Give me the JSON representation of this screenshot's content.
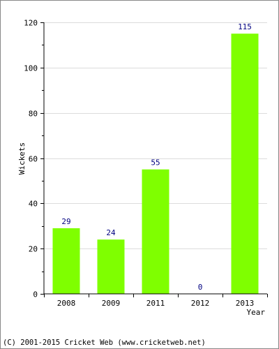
{
  "chart_data": {
    "type": "bar",
    "categories": [
      "2008",
      "2009",
      "2011",
      "2012",
      "2013"
    ],
    "values": [
      29,
      24,
      55,
      0,
      115
    ],
    "data_labels": [
      "29",
      "24",
      "55",
      "0",
      "115"
    ],
    "ylabel": "Wickets",
    "xlabel": "Year",
    "ylim": [
      0,
      120
    ],
    "yticks": [
      "0",
      "20",
      "40",
      "60",
      "80",
      "100",
      "120"
    ],
    "grid": true,
    "colors": {
      "bar": "#7fff00",
      "data_label": "#000080",
      "zero_label": "#000080"
    }
  },
  "footer": {
    "copyright": "(C) 2001-2015 Cricket Web (www.cricketweb.net)"
  }
}
